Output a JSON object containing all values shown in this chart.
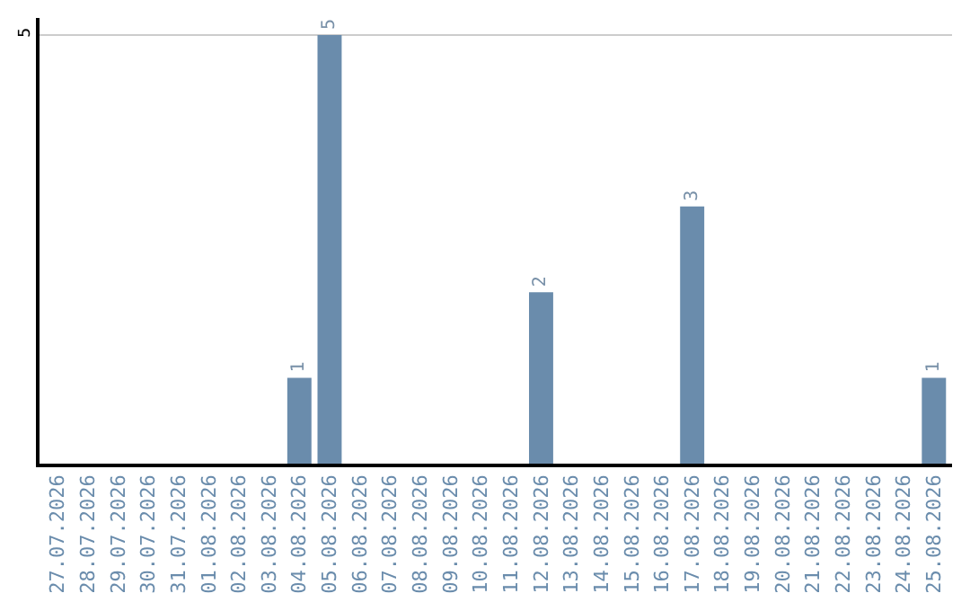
{
  "chart_data": {
    "type": "bar",
    "categories": [
      "27.07.2026",
      "28.07.2026",
      "29.07.2026",
      "30.07.2026",
      "31.07.2026",
      "01.08.2026",
      "02.08.2026",
      "03.08.2026",
      "04.08.2026",
      "05.08.2026",
      "06.08.2026",
      "07.08.2026",
      "08.08.2026",
      "09.08.2026",
      "10.08.2026",
      "11.08.2026",
      "12.08.2026",
      "13.08.2026",
      "14.08.2026",
      "15.08.2026",
      "16.08.2026",
      "17.08.2026",
      "18.08.2026",
      "19.08.2026",
      "20.08.2026",
      "21.08.2026",
      "22.08.2026",
      "23.08.2026",
      "24.08.2026",
      "25.08.2026"
    ],
    "values": [
      0,
      0,
      0,
      0,
      0,
      0,
      0,
      0,
      1,
      5,
      0,
      0,
      0,
      0,
      0,
      0,
      2,
      0,
      0,
      0,
      0,
      3,
      0,
      0,
      0,
      0,
      0,
      0,
      0,
      1
    ],
    "value_labels": [
      null,
      null,
      null,
      null,
      null,
      null,
      null,
      null,
      "1",
      "5",
      null,
      null,
      null,
      null,
      null,
      null,
      "2",
      null,
      null,
      null,
      null,
      "3",
      null,
      null,
      null,
      null,
      null,
      null,
      null,
      "1"
    ],
    "color": "#6a8cac",
    "ylim": [
      0,
      5.2
    ],
    "yticks": [
      5
    ],
    "grid": "y"
  }
}
